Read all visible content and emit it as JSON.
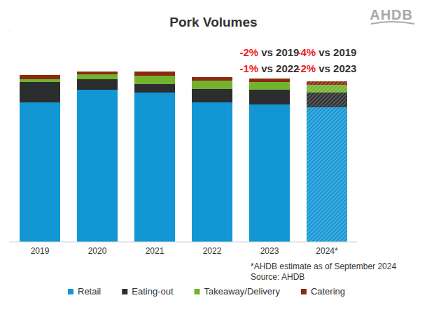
{
  "chart_data": {
    "type": "bar",
    "title": "Pork Volumes",
    "logo": "AHDB",
    "stacked": true,
    "categories": [
      "2019",
      "2020",
      "2021",
      "2022",
      "2023",
      "2024*"
    ],
    "series": [
      {
        "name": "Retail",
        "color": "#1296d4",
        "values": [
          199,
          217,
          213,
          199,
          196,
          192
        ]
      },
      {
        "name": "Eating-out",
        "color": "#2b2d2f",
        "values": [
          29,
          15,
          12,
          19,
          21,
          21
        ]
      },
      {
        "name": "Takeaway/Delivery",
        "color": "#72b22f",
        "values": [
          4,
          7,
          12,
          12,
          11,
          11
        ]
      },
      {
        "name": "Catering",
        "color": "#8a2b0e",
        "values": [
          6,
          4,
          6,
          5,
          5,
          5
        ]
      }
    ],
    "ylim": [
      0,
      300
    ],
    "yticks": [
      0,
      300
    ],
    "tick_labels": "x",
    "grid": false,
    "legend": "bottom",
    "annotations": [
      {
        "category": "2023",
        "lines": [
          {
            "change": "-2%",
            "text": "vs 2019"
          },
          {
            "change": "-1%",
            "text": "vs 2022"
          }
        ]
      },
      {
        "category": "2024*",
        "lines": [
          {
            "change": "-4%",
            "text": "vs 2019"
          },
          {
            "change": "-2%",
            "text": "vs 2023"
          }
        ]
      }
    ],
    "footnotes": [
      "*AHDB estimate as of September 2024",
      "Source: AHDB"
    ]
  }
}
